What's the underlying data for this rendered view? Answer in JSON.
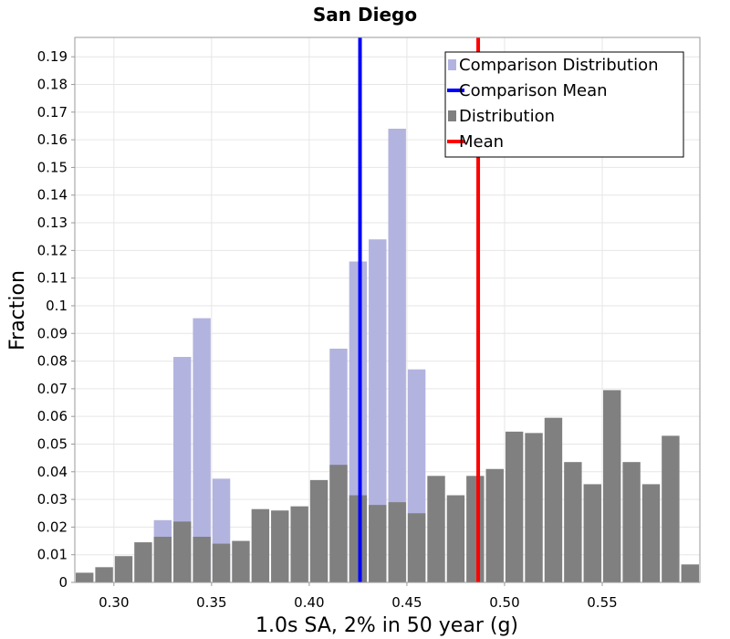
{
  "chart_data": {
    "type": "bar",
    "title": "San Diego",
    "xlabel": "1.0s SA, 2% in 50 year (g)",
    "ylabel": "Fraction",
    "xlim": [
      0.28,
      0.6
    ],
    "ylim": [
      0,
      0.197
    ],
    "bin_width": 0.01,
    "bin_centers": [
      0.285,
      0.295,
      0.305,
      0.315,
      0.325,
      0.335,
      0.345,
      0.355,
      0.365,
      0.375,
      0.385,
      0.395,
      0.405,
      0.415,
      0.425,
      0.435,
      0.445,
      0.455,
      0.465,
      0.475,
      0.485,
      0.495,
      0.505,
      0.515,
      0.525,
      0.535,
      0.545,
      0.555,
      0.565,
      0.575,
      0.585,
      0.595
    ],
    "x_ticks": [
      "0.30",
      "0.35",
      "0.40",
      "0.45",
      "0.50",
      "0.55"
    ],
    "x_tick_values": [
      0.3,
      0.35,
      0.4,
      0.45,
      0.5,
      0.55
    ],
    "y_ticks": [
      "0",
      "0.01",
      "0.02",
      "0.03",
      "0.04",
      "0.05",
      "0.06",
      "0.07",
      "0.08",
      "0.09",
      "0.1",
      "0.11",
      "0.12",
      "0.13",
      "0.14",
      "0.15",
      "0.16",
      "0.17",
      "0.18",
      "0.19"
    ],
    "y_tick_values": [
      0,
      0.01,
      0.02,
      0.03,
      0.04,
      0.05,
      0.06,
      0.07,
      0.08,
      0.09,
      0.1,
      0.11,
      0.12,
      0.13,
      0.14,
      0.15,
      0.16,
      0.17,
      0.18,
      0.19
    ],
    "grid": true,
    "legend_position": "top-right",
    "series": [
      {
        "name": "Comparison Distribution",
        "kind": "histogram",
        "color": "#b3b3e0",
        "values": [
          0,
          0,
          0,
          0,
          0.0225,
          0.0815,
          0.0955,
          0.0375,
          0,
          0,
          0,
          0,
          0,
          0.0845,
          0.116,
          0.124,
          0.164,
          0.077,
          0,
          0,
          0,
          0,
          0,
          0,
          0,
          0,
          0,
          0,
          0,
          0,
          0,
          0
        ]
      },
      {
        "name": "Comparison Mean",
        "kind": "vline",
        "color": "#0000ff",
        "x": 0.426
      },
      {
        "name": "Distribution",
        "kind": "histogram",
        "color": "#808080",
        "values": [
          0.0035,
          0.0055,
          0.0095,
          0.0145,
          0.0165,
          0.022,
          0.0165,
          0.014,
          0.015,
          0.0265,
          0.026,
          0.0275,
          0.037,
          0.0425,
          0.0315,
          0.028,
          0.029,
          0.025,
          0.0385,
          0.0315,
          0.0385,
          0.041,
          0.0545,
          0.054,
          0.0595,
          0.0435,
          0.0355,
          0.0695,
          0.0435,
          0.0355,
          0.053,
          0.0065
        ]
      },
      {
        "name": "Mean",
        "kind": "vline",
        "color": "#ff0000",
        "x": 0.4865
      }
    ]
  }
}
